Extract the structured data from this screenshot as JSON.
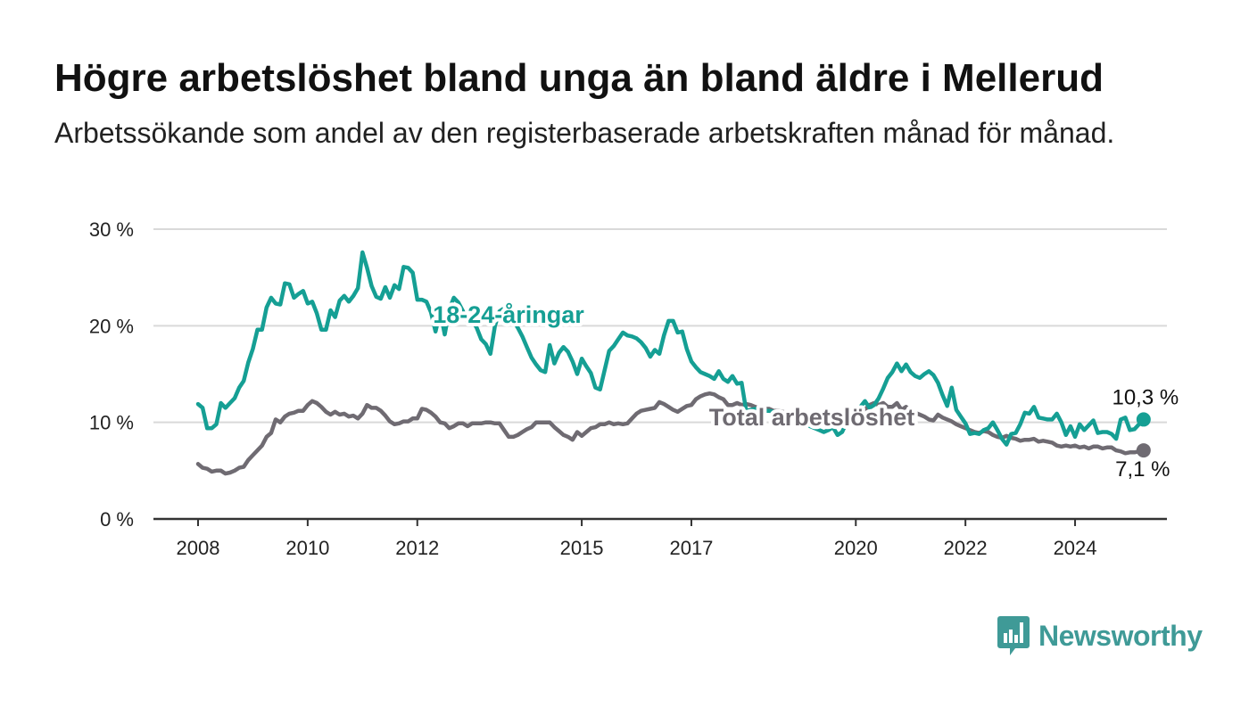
{
  "title": "Högre arbetslöshet bland unga än bland äldre i Mellerud",
  "subtitle": "Arbetssökande som andel av den registerbaserade arbetskraften månad för månad.",
  "brand": {
    "name": "Newsworthy",
    "color": "#3f9a97",
    "icon": "newsworthy-chart-icon"
  },
  "chart_data": {
    "type": "line",
    "x_start": "2008-01",
    "x_step": "month",
    "ylim": [
      0,
      30
    ],
    "y_ticks": [
      {
        "value": 0,
        "label": "0 %"
      },
      {
        "value": 10,
        "label": "10 %"
      },
      {
        "value": 20,
        "label": "20 %"
      },
      {
        "value": 30,
        "label": "30 %"
      }
    ],
    "x_ticks": [
      {
        "date": "2008-01",
        "label": "2008"
      },
      {
        "date": "2010-01",
        "label": "2010"
      },
      {
        "date": "2012-01",
        "label": "2012"
      },
      {
        "date": "2015-01",
        "label": "2015"
      },
      {
        "date": "2017-01",
        "label": "2017"
      },
      {
        "date": "2020-01",
        "label": "2020"
      },
      {
        "date": "2022-01",
        "label": "2022"
      },
      {
        "date": "2024-01",
        "label": "2024"
      }
    ],
    "grid": true,
    "series": [
      {
        "name": "18-24-åringar",
        "color": "#159f94",
        "end_label": "10,3 %",
        "values": [
          11.9,
          11.5,
          9.4,
          9.4,
          9.8,
          12.0,
          11.5,
          12.0,
          12.5,
          13.6,
          14.3,
          16.2,
          17.6,
          19.6,
          19.6,
          21.9,
          22.9,
          22.3,
          22.2,
          24.4,
          24.3,
          22.9,
          23.3,
          23.6,
          22.3,
          22.5,
          21.3,
          19.6,
          19.6,
          21.6,
          20.9,
          22.6,
          23.1,
          22.5,
          23.1,
          23.9,
          27.6,
          26.0,
          24.1,
          23.0,
          22.8,
          24.0,
          22.9,
          24.2,
          23.8,
          26.1,
          26.0,
          25.5,
          22.7,
          22.7,
          22.5,
          21.4,
          19.4,
          21.5,
          19.1,
          21.7,
          22.9,
          22.4,
          21.5,
          20.3,
          20.6,
          19.8,
          18.6,
          18.1,
          17.1,
          20.0,
          21.5,
          21.8,
          20.9,
          20.5,
          19.8,
          18.9,
          17.8,
          16.7,
          16.0,
          15.4,
          15.2,
          18.0,
          16.1,
          17.2,
          17.8,
          17.3,
          16.3,
          15.0,
          16.6,
          15.8,
          15.1,
          13.6,
          13.4,
          15.4,
          17.4,
          17.9,
          18.6,
          19.3,
          19.0,
          18.9,
          18.7,
          18.3,
          17.7,
          16.8,
          17.5,
          17.1,
          19.0,
          20.5,
          20.5,
          19.3,
          19.4,
          17.6,
          16.3,
          15.7,
          15.2,
          15.0,
          14.8,
          14.5,
          15.3,
          14.5,
          14.2,
          14.8,
          14.0,
          14.1,
          11.2,
          11.3,
          11.4,
          11.3,
          11.2,
          11.2,
          11.1,
          10.9,
          10.6,
          10.5,
          10.3,
          10.1,
          9.9,
          9.8,
          9.6,
          9.4,
          9.2,
          9.0,
          9.2,
          9.5,
          8.7,
          9.0,
          10.0,
          10.7,
          11.0,
          11.6,
          12.2,
          11.5,
          11.8,
          12.5,
          13.5,
          14.6,
          15.2,
          16.1,
          15.3,
          16.0,
          15.2,
          14.8,
          14.6,
          15.0,
          15.3,
          14.9,
          14.1,
          12.8,
          11.7,
          13.6,
          11.3,
          10.6,
          9.9,
          8.8,
          8.9,
          8.8,
          9.2,
          9.4,
          10.0,
          9.2,
          8.3,
          7.7,
          8.8,
          8.9,
          9.8,
          11.0,
          10.9,
          11.6,
          10.5,
          10.4,
          10.3,
          10.3,
          10.9,
          10.0,
          8.7,
          9.6,
          8.5,
          9.8,
          9.2,
          9.7,
          10.2,
          8.9,
          9.0,
          9.0,
          8.8,
          8.3,
          10.3,
          10.5,
          9.2,
          9.3,
          9.8,
          10.3
        ]
      },
      {
        "name": "Total arbetslöshet",
        "color": "#6f6b72",
        "end_label": "7,1 %",
        "values": [
          5.7,
          5.3,
          5.2,
          4.9,
          5.0,
          5.0,
          4.7,
          4.8,
          5.0,
          5.3,
          5.4,
          6.1,
          6.6,
          7.1,
          7.6,
          8.5,
          8.9,
          10.3,
          10.0,
          10.6,
          10.9,
          11.0,
          11.2,
          11.2,
          11.8,
          12.2,
          12.0,
          11.6,
          11.1,
          10.8,
          11.1,
          10.8,
          10.9,
          10.6,
          10.7,
          10.4,
          10.9,
          11.8,
          11.5,
          11.5,
          11.2,
          10.7,
          10.1,
          9.8,
          9.9,
          10.1,
          10.1,
          10.4,
          10.4,
          11.4,
          11.3,
          11.0,
          10.6,
          10.0,
          9.9,
          9.4,
          9.6,
          9.9,
          9.9,
          9.6,
          9.9,
          9.9,
          9.9,
          10.0,
          10.0,
          9.9,
          9.9,
          9.2,
          8.5,
          8.5,
          8.7,
          9.0,
          9.3,
          9.5,
          10.0,
          10.0,
          10.0,
          10.0,
          9.5,
          9.1,
          8.7,
          8.5,
          8.2,
          9.0,
          8.6,
          9.0,
          9.4,
          9.5,
          9.8,
          9.8,
          10.0,
          9.8,
          9.9,
          9.8,
          9.9,
          10.4,
          10.9,
          11.2,
          11.3,
          11.4,
          11.5,
          12.1,
          11.9,
          11.6,
          11.3,
          11.1,
          11.4,
          11.7,
          11.8,
          12.4,
          12.7,
          12.9,
          13.0,
          12.9,
          12.6,
          12.4,
          11.8,
          11.8,
          12.0,
          11.8,
          11.9,
          11.8,
          11.6,
          11.5,
          11.4,
          11.4,
          11.2,
          11.2,
          11.1,
          11.0,
          10.8,
          10.8,
          10.7,
          10.5,
          10.4,
          10.4,
          10.3,
          10.2,
          10.0,
          9.9,
          10.0,
          10.1,
          10.2,
          10.4,
          10.8,
          11.4,
          11.3,
          11.8,
          12.0,
          11.8,
          12.0,
          11.6,
          11.6,
          12.0,
          11.3,
          11.6,
          11.2,
          11.0,
          10.8,
          10.6,
          10.3,
          10.2,
          10.8,
          10.5,
          10.3,
          10.1,
          9.8,
          9.6,
          9.4,
          9.2,
          9.0,
          8.9,
          9.1,
          9.0,
          8.7,
          8.5,
          8.4,
          8.6,
          8.4,
          8.3,
          8.1,
          8.2,
          8.2,
          8.3,
          8.0,
          8.1,
          8.0,
          7.9,
          7.6,
          7.5,
          7.6,
          7.5,
          7.6,
          7.4,
          7.5,
          7.3,
          7.5,
          7.5,
          7.3,
          7.4,
          7.4,
          7.1,
          7.0,
          6.8,
          6.9,
          6.9,
          7.0,
          7.1
        ]
      }
    ],
    "annotations": [
      {
        "text": "18-24-åringar",
        "series": 0
      },
      {
        "text": "Total arbetslöshet",
        "series": 1
      }
    ]
  }
}
